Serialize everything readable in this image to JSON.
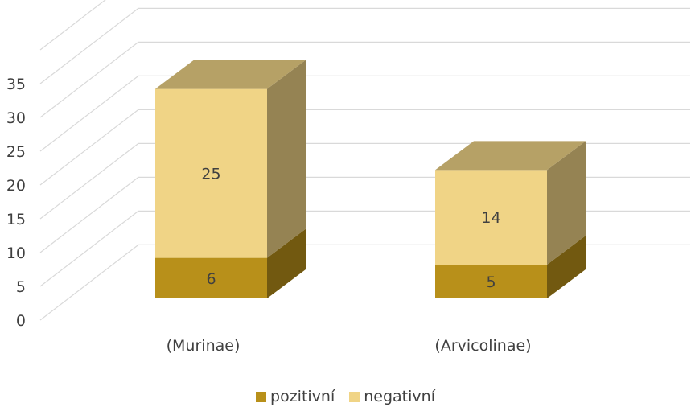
{
  "chart_data": {
    "type": "bar",
    "stacked": true,
    "three_d": true,
    "categories": [
      "(Murinae)",
      "(Arvicolinae)"
    ],
    "series": [
      {
        "name": "pozitivní",
        "values": [
          6,
          5
        ],
        "color": "#B8901A"
      },
      {
        "name": "negativní",
        "values": [
          25,
          14
        ],
        "color": "#F0D486"
      }
    ],
    "y_ticks": [
      0,
      5,
      10,
      15,
      20,
      25,
      30,
      35
    ],
    "ylim": [
      0,
      40
    ],
    "grid": true,
    "legend_position": "bottom"
  }
}
